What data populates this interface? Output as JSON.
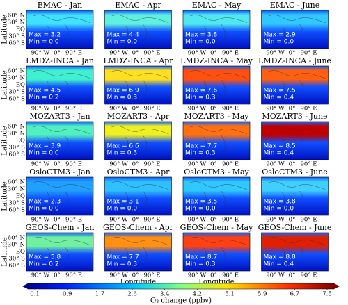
{
  "panels": [
    {
      "title": "EMAC - Jan",
      "max": "Max = 3.2",
      "min": "Min = 0.0"
    },
    {
      "title": "EMAC - Apr",
      "max": "Max = 4.4",
      "min": "Min = 0.0"
    },
    {
      "title": "EMAC - May",
      "max": "Max = 3.8",
      "min": "Min = 0.0"
    },
    {
      "title": "EMAC - June",
      "max": "Max = 2.9",
      "min": "Min = 0.0"
    },
    {
      "title": "LMDZ-INCA - Jan",
      "max": "Max = 4.5",
      "min": "Min = 0.2"
    },
    {
      "title": "LMDZ-INCA - Apr",
      "max": "Max = 6.9",
      "min": "Min = 0.3"
    },
    {
      "title": "LMDZ-INCA - May",
      "max": "Max = 7.6",
      "min": "Min = 0.3"
    },
    {
      "title": "LMDZ-INCA - June",
      "max": "Max = 7.5",
      "min": "Min = 0.4"
    },
    {
      "title": "MOZART3 - Jan",
      "max": "Max = 3.9",
      "min": "Min = 0.0"
    },
    {
      "title": "MOZART3 - Apr",
      "max": "Max = 6.6",
      "min": "Min = 0.3"
    },
    {
      "title": "MOZART3 - May",
      "max": "Max = 7.7",
      "min": "Min = 0.3"
    },
    {
      "title": "MOZART3 - June",
      "max": "Max = 8.5",
      "min": "Min = 0.4"
    },
    {
      "title": "OsloCTM3 - Jan",
      "max": "Max = 2.3",
      "min": "Min = 0.0"
    },
    {
      "title": "OsloCTM3 - Apr",
      "max": "Max = 3.1",
      "min": "Min = 0.0"
    },
    {
      "title": "OsloCTM3 - May",
      "max": "Max = 3.5",
      "min": "Min = 0.0"
    },
    {
      "title": "OsloCTM3 - June",
      "max": "Max = 3.8",
      "min": "Min = 0.0"
    },
    {
      "title": "GEOS-Chem - Jan",
      "max": "Max = 5.8",
      "min": "Min = 0.2"
    },
    {
      "title": "GEOS-Chem - Apr",
      "max": "Max = 7.7",
      "min": "Min = 0.3"
    },
    {
      "title": "GEOS-Chem - May",
      "max": "Max = 8.7",
      "min": "Min = 0.3"
    },
    {
      "title": "GEOS-Chem - June",
      "max": "Max = 8.8",
      "min": "Min = 0.4"
    }
  ],
  "y_axis": {
    "label": "Latitude",
    "ticks": [
      "60° N",
      "30° N",
      "EQ",
      "30° S",
      "60° S"
    ]
  },
  "x_axis": {
    "label": "Longitude",
    "ticks": [
      "90° W",
      "0°",
      "90° E"
    ]
  },
  "colorbar": {
    "label": "O₃ change (ppbv)",
    "ticks": [
      0.1,
      0.9,
      1.7,
      2.6,
      3.4,
      4.2,
      5.1,
      5.9,
      6.7,
      7.5
    ]
  }
}
